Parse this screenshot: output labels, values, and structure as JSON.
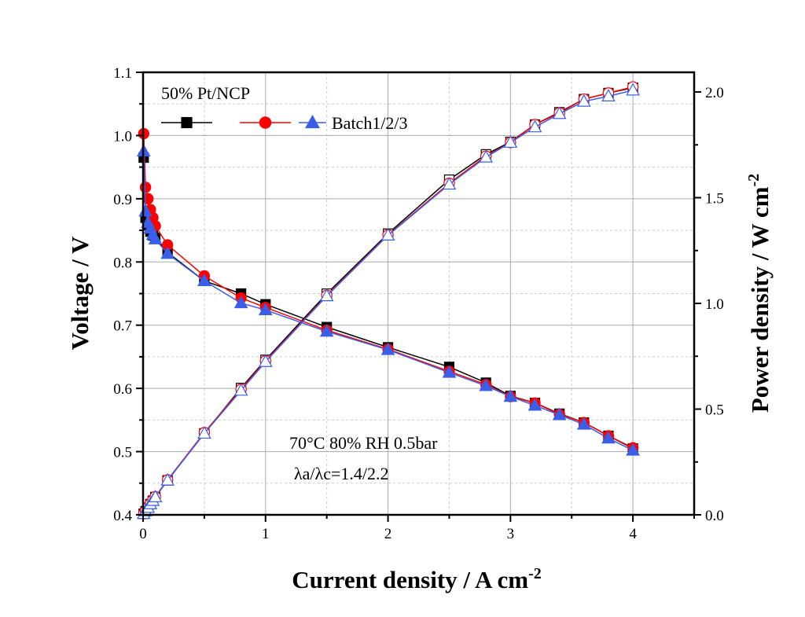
{
  "chart_data": {
    "type": "line",
    "xlabel": "Current density / A cm",
    "xlabel_sup": "-2",
    "ylabel": "Voltage / V",
    "y2label": "Power density / W cm",
    "y2label_sup": "-2",
    "xlim": [
      0,
      4.5
    ],
    "ylim": [
      0.4,
      1.1
    ],
    "y2lim": [
      0.0,
      2.093
    ],
    "xticks": [
      "0",
      "1",
      "2",
      "3",
      "4"
    ],
    "yticks": [
      "0.4",
      "0.5",
      "0.6",
      "0.7",
      "0.8",
      "0.9",
      "1.0",
      "1.1"
    ],
    "y2ticks": [
      "0.0",
      "0.5",
      "1.0",
      "1.5",
      "2.0"
    ],
    "grid": true,
    "legend_title": "50% Pt/NCP",
    "legend_label": "Batch1/2/3",
    "legend_placement": "top-left",
    "annotations": [
      "70°C 80% RH 0.5bar",
      "λa/λc=1.4/2.2"
    ],
    "x": [
      0.005,
      0.02,
      0.04,
      0.06,
      0.08,
      0.1,
      0.2,
      0.5,
      0.8,
      1,
      1.5,
      2,
      2.5,
      2.8,
      3,
      3.2,
      3.4,
      3.6,
      3.8,
      4
    ],
    "series": [
      {
        "color": "#000000",
        "marker": "square",
        "voltage": [
          0.965,
          0.87,
          0.858,
          0.848,
          0.842,
          0.838,
          0.815,
          0.77,
          0.75,
          0.733,
          0.697,
          0.665,
          0.634,
          0.609,
          0.588,
          0.577,
          0.56,
          0.546,
          0.525,
          0.505
        ],
        "power": [
          0.005,
          0.017,
          0.034,
          0.051,
          0.067,
          0.084,
          0.163,
          0.385,
          0.6,
          0.733,
          1.046,
          1.33,
          1.585,
          1.705,
          1.764,
          1.846,
          1.904,
          1.966,
          1.995,
          2.02
        ]
      },
      {
        "color": "#ff0000",
        "marker": "circle",
        "voltage": [
          1.003,
          0.918,
          0.9,
          0.883,
          0.87,
          0.857,
          0.827,
          0.778,
          0.743,
          0.728,
          0.692,
          0.662,
          0.627,
          0.606,
          0.587,
          0.577,
          0.559,
          0.546,
          0.525,
          0.506
        ],
        "power": [
          0.005,
          0.018,
          0.036,
          0.053,
          0.07,
          0.086,
          0.165,
          0.389,
          0.594,
          0.728,
          1.038,
          1.324,
          1.568,
          1.697,
          1.761,
          1.846,
          1.901,
          1.966,
          1.995,
          2.024
        ]
      },
      {
        "color": "#3b5ee8",
        "marker": "triangle",
        "voltage": [
          0.975,
          0.88,
          0.862,
          0.853,
          0.843,
          0.836,
          0.813,
          0.77,
          0.735,
          0.724,
          0.69,
          0.661,
          0.625,
          0.604,
          0.587,
          0.573,
          0.558,
          0.543,
          0.521,
          0.502
        ],
        "power": [
          0.005,
          0.018,
          0.034,
          0.051,
          0.067,
          0.084,
          0.163,
          0.385,
          0.588,
          0.724,
          1.035,
          1.322,
          1.563,
          1.691,
          1.761,
          1.834,
          1.897,
          1.955,
          1.98,
          2.008
        ]
      }
    ]
  }
}
